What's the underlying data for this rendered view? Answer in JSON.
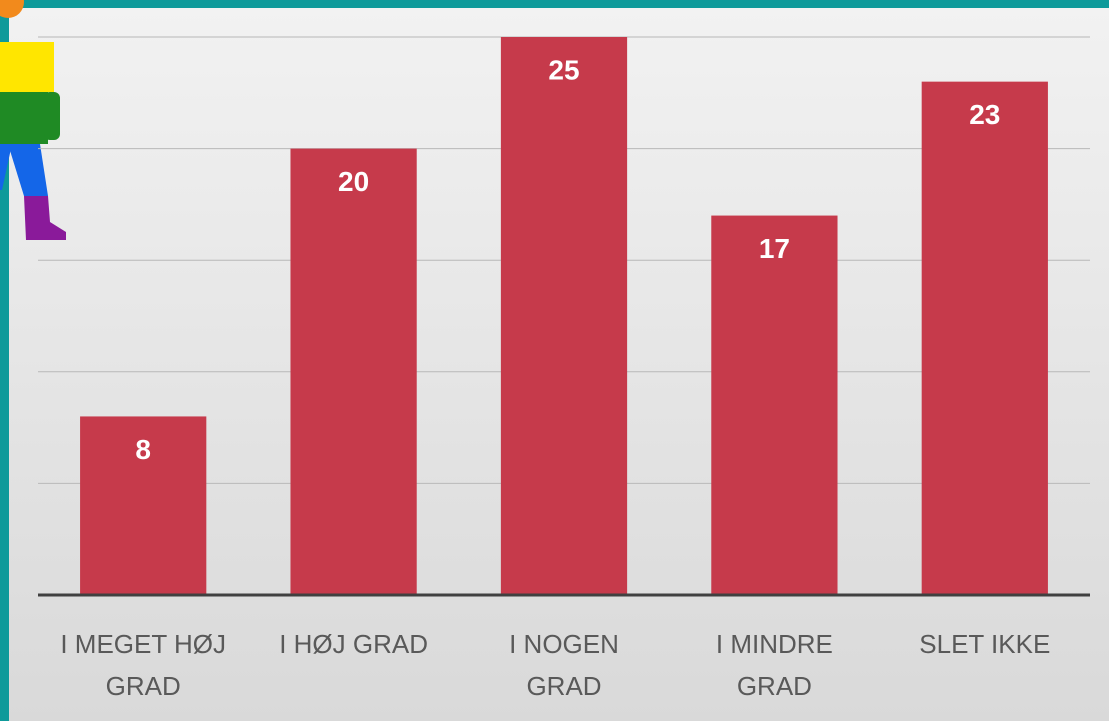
{
  "chart_data": {
    "type": "bar",
    "categories": [
      "I MEGET HØJ GRAD",
      "I HØJ GRAD",
      "I NOGEN GRAD",
      "I MINDRE GRAD",
      "SLET IKKE"
    ],
    "values": [
      8,
      20,
      25,
      17,
      23
    ],
    "color": "#c63a4b",
    "ylim": [
      0,
      25
    ],
    "yticks": [
      0,
      5,
      10,
      15,
      20,
      25
    ],
    "grid": true
  }
}
